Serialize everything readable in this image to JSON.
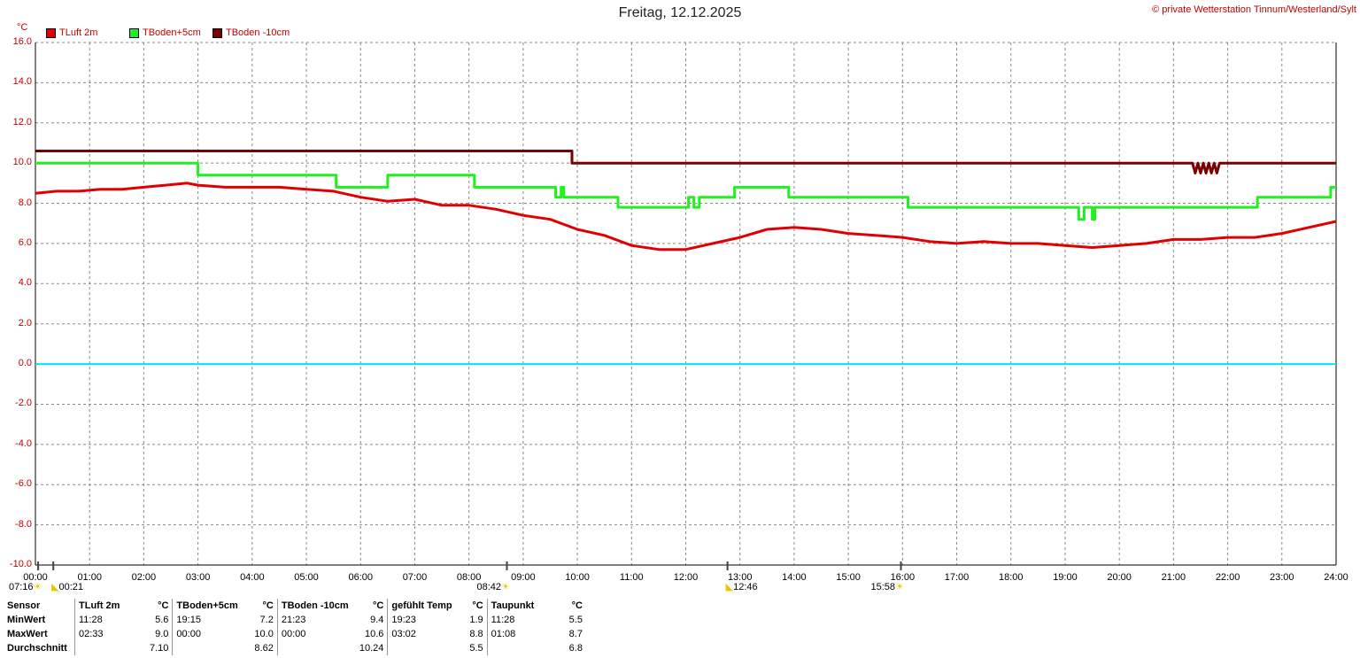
{
  "header": {
    "title": "Freitag, 12.12.2025",
    "copyright": "© private Wetterstation Tinnum/Westerland/Sylt",
    "unit": "°C"
  },
  "colors": {
    "tluft": "#e00000",
    "tboden5": "#22ee22",
    "tboden10": "#7a0000",
    "zero": "#00e5ee",
    "grid": "#888888"
  },
  "chart_data": {
    "type": "line",
    "title": "Freitag, 12.12.2025",
    "ylabel": "°C",
    "ylim": [
      -10,
      16
    ],
    "xlim": [
      0,
      24
    ],
    "grid": true,
    "legend": "top-left",
    "y_ticks": [
      "16.0",
      "14.0",
      "12.0",
      "10.0",
      "8.0",
      "6.0",
      "4.0",
      "2.0",
      "0.0",
      "-2.0",
      "-4.0",
      "-6.0",
      "-8.0",
      "-10.0"
    ],
    "x_ticks": [
      "00:00",
      "01:00",
      "02:00",
      "03:00",
      "04:00",
      "05:00",
      "06:00",
      "07:00",
      "08:00",
      "09:00",
      "10:00",
      "11:00",
      "12:00",
      "13:00",
      "14:00",
      "15:00",
      "16:00",
      "17:00",
      "18:00",
      "19:00",
      "20:00",
      "21:00",
      "22:00",
      "23:00",
      "24:00"
    ],
    "series": [
      {
        "name": "TLuft 2m",
        "color": "#e00000",
        "x": [
          0,
          0.4,
          0.8,
          1.2,
          1.6,
          2.0,
          2.4,
          2.8,
          3.0,
          3.5,
          4.0,
          4.5,
          5.0,
          5.5,
          6.0,
          6.5,
          7.0,
          7.5,
          8.0,
          8.5,
          9.0,
          9.5,
          10.0,
          10.5,
          11.0,
          11.5,
          12.0,
          12.5,
          13.0,
          13.5,
          14.0,
          14.5,
          15.0,
          15.5,
          16.0,
          16.5,
          17.0,
          17.5,
          18.0,
          18.5,
          19.0,
          19.5,
          20.0,
          20.5,
          21.0,
          21.5,
          22.0,
          22.5,
          23.0,
          23.5,
          24.0
        ],
        "y": [
          8.5,
          8.6,
          8.6,
          8.7,
          8.7,
          8.8,
          8.9,
          9.0,
          8.9,
          8.8,
          8.8,
          8.8,
          8.7,
          8.6,
          8.3,
          8.1,
          8.2,
          7.9,
          7.9,
          7.7,
          7.4,
          7.2,
          6.7,
          6.4,
          5.9,
          5.7,
          5.7,
          6.0,
          6.3,
          6.7,
          6.8,
          6.7,
          6.5,
          6.4,
          6.3,
          6.1,
          6.0,
          6.1,
          6.0,
          6.0,
          5.9,
          5.8,
          5.9,
          6.0,
          6.2,
          6.2,
          6.3,
          6.3,
          6.5,
          6.8,
          7.1
        ]
      },
      {
        "name": "TBoden+5cm",
        "color": "#22ee22",
        "x": [
          0,
          3.0,
          3.0,
          5.55,
          5.55,
          6.5,
          6.5,
          8.1,
          8.1,
          9.6,
          9.6,
          9.7,
          9.7,
          9.75,
          9.75,
          10.75,
          10.75,
          12.05,
          12.05,
          12.15,
          12.15,
          12.25,
          12.25,
          12.3,
          12.3,
          12.9,
          12.9,
          13.9,
          13.9,
          16.1,
          16.1,
          19.25,
          19.25,
          19.35,
          19.35,
          19.5,
          19.5,
          19.55,
          19.55,
          22.55,
          22.55,
          23.9,
          23.9,
          24.0
        ],
        "y": [
          10.0,
          10.0,
          9.4,
          9.4,
          8.8,
          8.8,
          9.4,
          9.4,
          8.8,
          8.8,
          8.3,
          8.3,
          8.8,
          8.8,
          8.3,
          8.3,
          7.8,
          7.8,
          8.3,
          8.3,
          7.8,
          7.8,
          8.3,
          8.3,
          8.3,
          8.3,
          8.8,
          8.8,
          8.3,
          8.3,
          7.8,
          7.8,
          7.2,
          7.2,
          7.8,
          7.8,
          7.2,
          7.2,
          7.8,
          7.8,
          8.3,
          8.3,
          8.8,
          8.8
        ]
      },
      {
        "name": "TBoden -10cm",
        "color": "#7a0000",
        "x": [
          0,
          9.9,
          9.9,
          21.35,
          21.4,
          21.45,
          21.5,
          21.55,
          21.6,
          21.65,
          21.7,
          21.75,
          21.8,
          21.85,
          21.9,
          24.0
        ],
        "y": [
          10.6,
          10.6,
          10.0,
          10.0,
          9.5,
          10.0,
          9.5,
          10.0,
          9.5,
          10.0,
          9.5,
          10.0,
          9.5,
          10.0,
          10.0,
          10.0
        ]
      }
    ],
    "zero_line": 0,
    "sun_markers": [
      {
        "label": "07:16",
        "x": 0.05,
        "icon": "sunrise-icon"
      },
      {
        "label": "00:21",
        "x": 0.33,
        "icon": "moonrise-icon"
      },
      {
        "label": "08:42",
        "x": 8.7,
        "icon": "sun-icon"
      },
      {
        "label": "12:46",
        "x": 12.77,
        "icon": "moonset-icon"
      },
      {
        "label": "15:58",
        "x": 15.97,
        "icon": "sunset-icon"
      }
    ]
  },
  "stats": {
    "row_labels": [
      "Sensor",
      "MinWert",
      "MaxWert",
      "Durchschnitt"
    ],
    "columns": [
      {
        "name": "TLuft 2m",
        "unit": "°C",
        "min_time": "11:28",
        "min": "5.6",
        "max_time": "02:33",
        "max": "9.0",
        "avg": "7.10"
      },
      {
        "name": "TBoden+5cm",
        "unit": "°C",
        "min_time": "19:15",
        "min": "7.2",
        "max_time": "00:00",
        "max": "10.0",
        "avg": "8.62"
      },
      {
        "name": "TBoden -10cm",
        "unit": "°C",
        "min_time": "21:23",
        "min": "9.4",
        "max_time": "00:00",
        "max": "10.6",
        "avg": "10.24"
      },
      {
        "name": "gefühlt Temp",
        "unit": "°C",
        "min_time": "19:23",
        "min": "1.9",
        "max_time": "03:02",
        "max": "8.8",
        "avg": "5.5"
      },
      {
        "name": "Taupunkt",
        "unit": "°C",
        "min_time": "11:28",
        "min": "5.5",
        "max_time": "01:08",
        "max": "8.7",
        "avg": "6.8"
      }
    ]
  }
}
